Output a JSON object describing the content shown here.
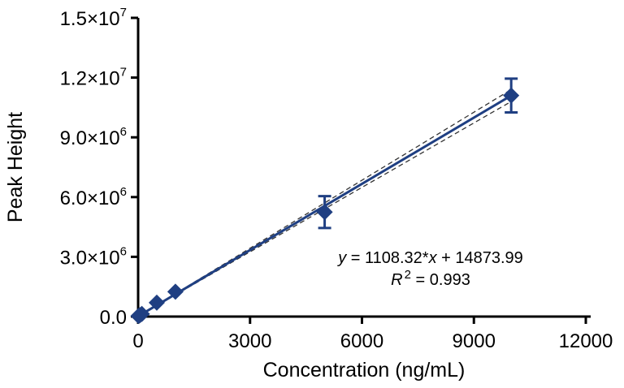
{
  "chart_data": {
    "type": "scatter",
    "title": "",
    "xlabel": "Concentration (ng/mL)",
    "ylabel": "Peak Height",
    "xlim": [
      0,
      12000
    ],
    "ylim": [
      0,
      15000000
    ],
    "x_ticks": [
      0,
      3000,
      6000,
      9000,
      12000
    ],
    "x_tick_labels": [
      "0",
      "3000",
      "6000",
      "9000",
      "12000"
    ],
    "y_ticks": [
      0,
      3000000,
      6000000,
      9000000,
      12000000,
      15000000
    ],
    "y_tick_labels": [
      {
        "base": "0.0",
        "exp": ""
      },
      {
        "base": "3.0×10",
        "exp": "6"
      },
      {
        "base": "6.0×10",
        "exp": "6"
      },
      {
        "base": "9.0×10",
        "exp": "6"
      },
      {
        "base": "1.2×10",
        "exp": "7"
      },
      {
        "base": "1.5×10",
        "exp": "7"
      }
    ],
    "grid": false,
    "series": [
      {
        "name": "Peak Height",
        "marker": "diamond",
        "color": "#1f3f82",
        "x": [
          10,
          50,
          100,
          500,
          1000,
          5000,
          10000
        ],
        "y": [
          30000,
          70000,
          130000,
          700000,
          1250000,
          5250000,
          11100000
        ],
        "error": [
          20000,
          30000,
          40000,
          80000,
          110000,
          800000,
          850000
        ]
      }
    ],
    "fit": {
      "slope": 1108.32,
      "intercept": 14873.99,
      "ci_upper_at_max": 11400000,
      "ci_lower_at_max": 10800000,
      "color": "#1f3f82",
      "ci_color": "#333333"
    },
    "equation_prefix": "y",
    "equation_middle": " = 1108.32*",
    "equation_var": "x",
    "equation_suffix": " + 14873.99",
    "r2_label": "R",
    "r2_sup": "2",
    "r2_value": " = 0.993"
  }
}
